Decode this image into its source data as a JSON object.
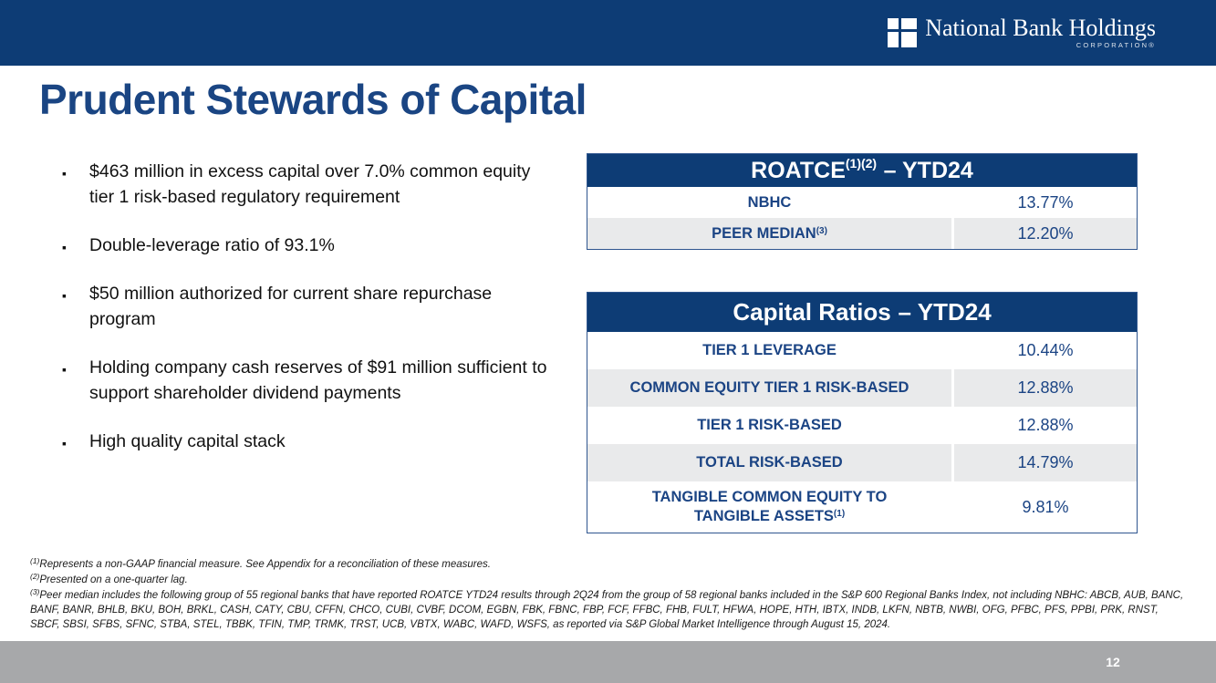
{
  "brand": {
    "name": "National Bank Holdings",
    "sub": "CORPORATION®",
    "navy": "#0d3c75",
    "text_navy": "#1b4484",
    "row_gray": "#e9eaeb",
    "footer_gray": "#a7a8aa"
  },
  "title": "Prudent Stewards of Capital",
  "bullet_marker": "▪",
  "bullets": [
    "$463 million in excess capital over 7.0% common equity tier 1 risk-based regulatory requirement",
    "Double-leverage ratio of 93.1%",
    "$50 million authorized for current share repurchase program",
    "Holding company cash reserves of $91 million sufficient to support shareholder dividend payments",
    "High quality capital stack"
  ],
  "tables": [
    {
      "title_main": "ROATCE",
      "title_sup": "(1)(2)",
      "title_rest": "– YTD24",
      "rows": [
        {
          "label": "NBHC",
          "value": "13.77%"
        },
        {
          "label": "PEER MEDIAN",
          "label_sup": "(3)",
          "value": "12.20%"
        }
      ]
    },
    {
      "title_main": "Capital Ratios",
      "title_sup": "",
      "title_rest": "– YTD24",
      "rows": [
        {
          "label": "TIER 1 LEVERAGE",
          "value": "10.44%"
        },
        {
          "label": "COMMON EQUITY TIER 1 RISK-BASED",
          "value": "12.88%"
        },
        {
          "label": "TIER 1 RISK-BASED",
          "value": "12.88%"
        },
        {
          "label": "TOTAL RISK-BASED",
          "value": "14.79%"
        },
        {
          "label": "TANGIBLE COMMON EQUITY TO TANGIBLE ASSETS",
          "label_sup": "(1)",
          "value": "9.81%"
        }
      ]
    }
  ],
  "footnotes": [
    {
      "sup": "(1)",
      "text": "Represents a non-GAAP financial measure.  See Appendix for a reconciliation of these measures."
    },
    {
      "sup": "(2)",
      "text": "Presented on a one-quarter lag."
    },
    {
      "sup": "(3)",
      "text": "Peer median includes the following group of 55 regional banks that have reported ROATCE YTD24 results through 2Q24 from the group of 58 regional banks included in the S&P 600 Regional Banks Index, not including NBHC: ABCB, AUB, BANC, BANF, BANR, BHLB, BKU, BOH, BRKL, CASH, CATY, CBU, CFFN, CHCO, CUBI, CVBF, DCOM, EGBN, FBK, FBNC, FBP, FCF, FFBC, FHB, FULT, HFWA, HOPE, HTH, IBTX, INDB, LKFN, NBTB, NWBI, OFG, PFBC, PFS, PPBI, PRK, RNST, SBCF, SBSI, SFBS, SFNC, STBA, STEL, TBBK, TFIN, TMP, TRMK, TRST, UCB, VBTX, WABC, WAFD, WSFS, as reported via S&P Global Market Intelligence through August 15, 2024."
    }
  ],
  "page_number": "12"
}
